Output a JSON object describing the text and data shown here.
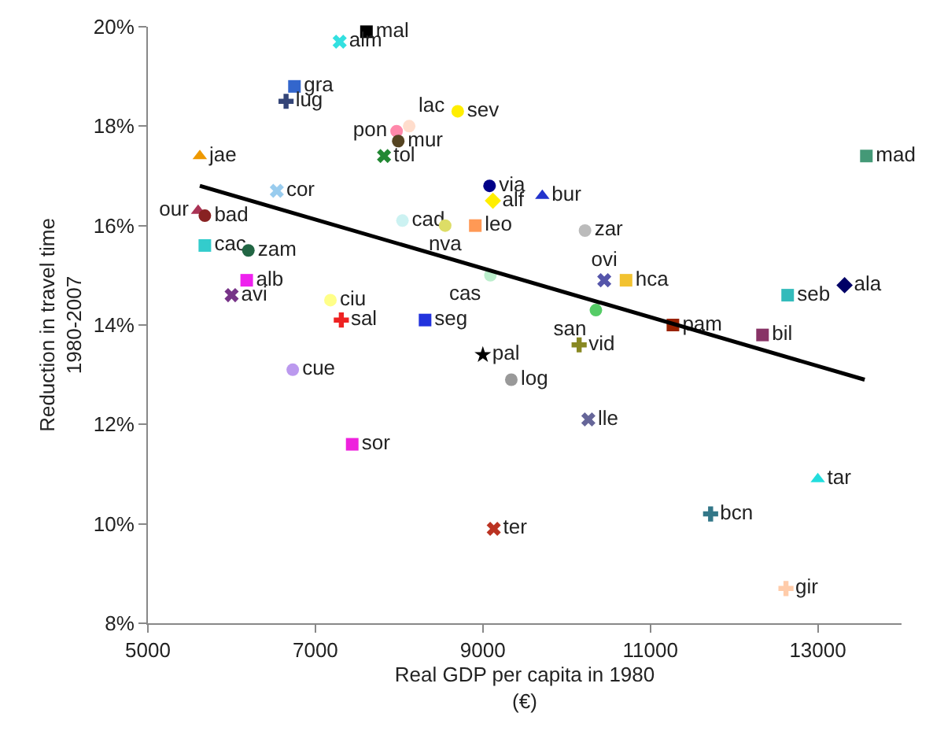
{
  "chart_data": {
    "type": "scatter",
    "xlabel": "Real GDP per capita in 1980\n(€)",
    "ylabel": "Reduction in travel time\n1980-2007",
    "xlim": [
      5000,
      14000
    ],
    "xticks": [
      5000,
      7000,
      9000,
      11000,
      13000
    ],
    "ylim": [
      8,
      20
    ],
    "yticks": [
      {
        "value": 8,
        "label": "8%"
      },
      {
        "value": 10,
        "label": "10%"
      },
      {
        "value": 12,
        "label": "12%"
      },
      {
        "value": 14,
        "label": "14%"
      },
      {
        "value": 16,
        "label": "16%"
      },
      {
        "value": 18,
        "label": "18%"
      },
      {
        "value": 20,
        "label": "20%"
      }
    ],
    "legend": false,
    "series": [
      {
        "name": "mal",
        "color": "#000000",
        "marker": "square",
        "x": [
          7610
        ],
        "values": [
          19.9
        ]
      },
      {
        "name": "alm",
        "color": "#33e0e0",
        "marker": "x",
        "x": [
          7290
        ],
        "values": [
          19.7
        ]
      },
      {
        "name": "gra",
        "color": "#3366cc",
        "marker": "square",
        "x": [
          6750
        ],
        "values": [
          18.8
        ]
      },
      {
        "name": "lug",
        "color": "#334477",
        "marker": "cross",
        "x": [
          6650
        ],
        "values": [
          18.5
        ]
      },
      {
        "name": "sev",
        "color": "#ffee00",
        "marker": "circle",
        "x": [
          8700
        ],
        "values": [
          18.3
        ]
      },
      {
        "name": "pon",
        "color": "#ff88aa",
        "marker": "circle",
        "x": [
          7970
        ],
        "values": [
          17.9
        ]
      },
      {
        "name": "lac",
        "color": "#ffddcc",
        "marker": "circle",
        "x": [
          8120
        ],
        "values": [
          18.0
        ]
      },
      {
        "name": "mur",
        "color": "#554422",
        "marker": "circle",
        "x": [
          7990
        ],
        "values": [
          17.7
        ]
      },
      {
        "name": "tol",
        "color": "#228833",
        "marker": "x",
        "x": [
          7820
        ],
        "values": [
          17.4
        ]
      },
      {
        "name": "jae",
        "color": "#ee9900",
        "marker": "triangle",
        "x": [
          5620
        ],
        "values": [
          17.4
        ]
      },
      {
        "name": "cor",
        "color": "#99ccee",
        "marker": "x",
        "x": [
          6540
        ],
        "values": [
          16.7
        ]
      },
      {
        "name": "via",
        "color": "#000088",
        "marker": "circle",
        "x": [
          9080
        ],
        "values": [
          16.8
        ]
      },
      {
        "name": "alf",
        "color": "#ffee00",
        "marker": "diamond",
        "x": [
          9120
        ],
        "values": [
          16.5
        ]
      },
      {
        "name": "bur",
        "color": "#2233cc",
        "marker": "triangle",
        "x": [
          9710
        ],
        "values": [
          16.6
        ]
      },
      {
        "name": "mad",
        "color": "#449977",
        "marker": "square",
        "x": [
          13580
        ],
        "values": [
          17.4
        ]
      },
      {
        "name": "our",
        "color": "#aa3355",
        "marker": "triangle",
        "x": [
          5600
        ],
        "values": [
          16.3
        ]
      },
      {
        "name": "bad",
        "color": "#882222",
        "marker": "circle",
        "x": [
          5680
        ],
        "values": [
          16.2
        ]
      },
      {
        "name": "cad",
        "color": "#ccf2f2",
        "marker": "circle",
        "x": [
          8040
        ],
        "values": [
          16.1
        ]
      },
      {
        "name": "nva",
        "color": "#dddd66",
        "marker": "circle",
        "x": [
          8550
        ],
        "values": [
          16.0
        ]
      },
      {
        "name": "leo",
        "color": "#ff9955",
        "marker": "square",
        "x": [
          8910
        ],
        "values": [
          16.0
        ]
      },
      {
        "name": "zar",
        "color": "#bbbbbb",
        "marker": "circle",
        "x": [
          10220
        ],
        "values": [
          15.9
        ]
      },
      {
        "name": "cac",
        "color": "#33cccc",
        "marker": "square",
        "x": [
          5680
        ],
        "values": [
          15.6
        ]
      },
      {
        "name": "zam",
        "color": "#226644",
        "marker": "circle",
        "x": [
          6200
        ],
        "values": [
          15.5
        ]
      },
      {
        "name": "cas",
        "color": "#bbeecc",
        "marker": "circle",
        "x": [
          9090
        ],
        "values": [
          15.0
        ]
      },
      {
        "name": "ovi",
        "color": "#5555aa",
        "marker": "x",
        "x": [
          10450
        ],
        "values": [
          14.9
        ]
      },
      {
        "name": "hca",
        "color": "#f2c230",
        "marker": "square",
        "x": [
          10710
        ],
        "values": [
          14.9
        ]
      },
      {
        "name": "ala",
        "color": "#000066",
        "marker": "diamond",
        "x": [
          13320
        ],
        "values": [
          14.8
        ]
      },
      {
        "name": "seb",
        "color": "#33bbbb",
        "marker": "square",
        "x": [
          12640
        ],
        "values": [
          14.6
        ]
      },
      {
        "name": "alb",
        "color": "#ee22ee",
        "marker": "square",
        "x": [
          6180
        ],
        "values": [
          14.9
        ]
      },
      {
        "name": "avi",
        "color": "#773388",
        "marker": "x",
        "x": [
          6000
        ],
        "values": [
          14.6
        ]
      },
      {
        "name": "ciu",
        "color": "#ffff88",
        "marker": "circle",
        "x": [
          7180
        ],
        "values": [
          14.5
        ]
      },
      {
        "name": "san",
        "color": "#55cc66",
        "marker": "circle",
        "x": [
          10350
        ],
        "values": [
          14.3
        ]
      },
      {
        "name": "pam",
        "color": "#992200",
        "marker": "square",
        "x": [
          11270
        ],
        "values": [
          14.0
        ]
      },
      {
        "name": "bil",
        "color": "#883366",
        "marker": "square",
        "x": [
          12340
        ],
        "values": [
          13.8
        ]
      },
      {
        "name": "sal",
        "color": "#ee2222",
        "marker": "cross",
        "x": [
          7310
        ],
        "values": [
          14.1
        ]
      },
      {
        "name": "seg",
        "color": "#2233dd",
        "marker": "square",
        "x": [
          8310
        ],
        "values": [
          14.1
        ]
      },
      {
        "name": "vid",
        "color": "#888822",
        "marker": "cross",
        "x": [
          10150
        ],
        "values": [
          13.6
        ]
      },
      {
        "name": "pal",
        "color": "#000000",
        "marker": "star",
        "x": [
          9000
        ],
        "values": [
          13.4
        ]
      },
      {
        "name": "log",
        "color": "#999999",
        "marker": "circle",
        "x": [
          9340
        ],
        "values": [
          12.9
        ]
      },
      {
        "name": "cue",
        "color": "#bb99ee",
        "marker": "circle",
        "x": [
          6730
        ],
        "values": [
          13.1
        ]
      },
      {
        "name": "lle",
        "color": "#666699",
        "marker": "x",
        "x": [
          10260
        ],
        "values": [
          12.1
        ]
      },
      {
        "name": "sor",
        "color": "#ee22dd",
        "marker": "square",
        "x": [
          7440
        ],
        "values": [
          11.6
        ]
      },
      {
        "name": "tar",
        "color": "#22dddd",
        "marker": "triangle",
        "x": [
          13000
        ],
        "values": [
          10.9
        ]
      },
      {
        "name": "bcn",
        "color": "#337788",
        "marker": "cross",
        "x": [
          11720
        ],
        "values": [
          10.2
        ]
      },
      {
        "name": "ter",
        "color": "#bb3322",
        "marker": "x",
        "x": [
          9130
        ],
        "values": [
          9.9
        ]
      },
      {
        "name": "gir",
        "color": "#ffccaa",
        "marker": "cross",
        "x": [
          12620
        ],
        "values": [
          8.7
        ]
      },
      {
        "type": "line",
        "color": "#000000",
        "x": [
          5620,
          13560
        ],
        "values": [
          16.8,
          12.9
        ]
      }
    ]
  }
}
